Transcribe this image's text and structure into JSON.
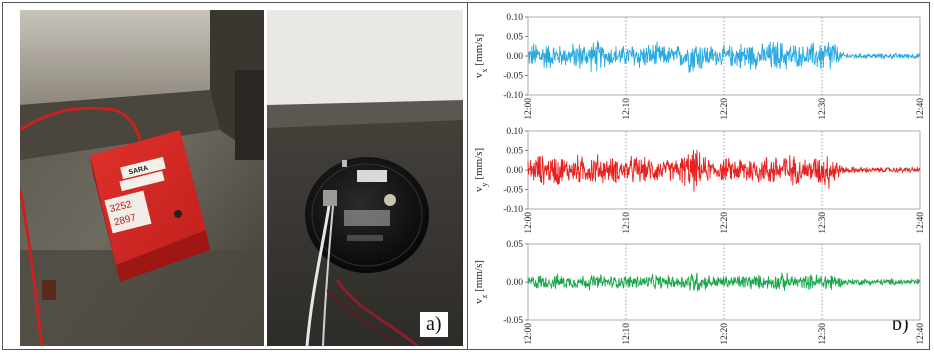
{
  "panel_a_label": "a)",
  "panel_b_label": "b)",
  "box_sticker": "SARA",
  "box_note_1": "3252",
  "box_note_2": "2897",
  "chart_data": [
    {
      "type": "line",
      "series_name": "vx",
      "ylabel_main": "v",
      "ylabel_sub": "x",
      "ylabel_unit": "[mm/s]",
      "color": "#29a9e0",
      "ylim": [
        -0.1,
        0.1
      ],
      "yticks": [
        "0.10",
        "0.05",
        "0.00",
        "-0.05",
        "-0.10"
      ],
      "yticks_values": [
        0.1,
        0.05,
        0.0,
        -0.05,
        -0.1
      ],
      "xticks": [
        "12:00",
        "12:10",
        "12:20",
        "12:30",
        "12:40"
      ],
      "xlim": [
        "12:00",
        "12:40"
      ],
      "grid": "vertical dotted",
      "x": [
        "12:00",
        "12:01",
        "12:02",
        "12:03",
        "12:04",
        "12:05",
        "12:06",
        "12:07",
        "12:08",
        "12:09",
        "12:10",
        "12:11",
        "12:12",
        "12:13",
        "12:14",
        "12:15",
        "12:16",
        "12:17",
        "12:18",
        "12:19",
        "12:20",
        "12:21",
        "12:22",
        "12:23",
        "12:24",
        "12:25",
        "12:26",
        "12:27",
        "12:28",
        "12:29",
        "12:30",
        "12:31",
        "12:32",
        "12:33",
        "12:34",
        "12:35",
        "12:36",
        "12:37",
        "12:38",
        "12:39",
        "12:40"
      ],
      "peak_amplitude": [
        0.03,
        0.05,
        0.04,
        0.035,
        0.03,
        0.045,
        0.04,
        0.05,
        0.03,
        0.035,
        0.03,
        0.045,
        0.035,
        0.04,
        0.03,
        0.03,
        0.04,
        0.06,
        0.04,
        0.03,
        0.03,
        0.035,
        0.045,
        0.04,
        0.035,
        0.05,
        0.045,
        0.04,
        0.03,
        0.04,
        0.05,
        0.06,
        0.01,
        0.01,
        0.008,
        0.008,
        0.008,
        0.008,
        0.008,
        0.008,
        0.008
      ]
    },
    {
      "type": "line",
      "series_name": "vy",
      "ylabel_main": "v",
      "ylabel_sub": "y",
      "ylabel_unit": "[mm/s]",
      "color": "#e8201f",
      "ylim": [
        -0.1,
        0.1
      ],
      "yticks": [
        "0.10",
        "0.05",
        "0.00",
        "-0.05",
        "-0.10"
      ],
      "yticks_values": [
        0.1,
        0.05,
        0.0,
        -0.05,
        -0.1
      ],
      "xticks": [
        "12:00",
        "12:10",
        "12:20",
        "12:30",
        "12:40"
      ],
      "xlim": [
        "12:00",
        "12:40"
      ],
      "grid": "vertical dotted",
      "x": [
        "12:00",
        "12:01",
        "12:02",
        "12:03",
        "12:04",
        "12:05",
        "12:06",
        "12:07",
        "12:08",
        "12:09",
        "12:10",
        "12:11",
        "12:12",
        "12:13",
        "12:14",
        "12:15",
        "12:16",
        "12:17",
        "12:18",
        "12:19",
        "12:20",
        "12:21",
        "12:22",
        "12:23",
        "12:24",
        "12:25",
        "12:26",
        "12:27",
        "12:28",
        "12:29",
        "12:30",
        "12:31",
        "12:32",
        "12:33",
        "12:34",
        "12:35",
        "12:36",
        "12:37",
        "12:38",
        "12:39",
        "12:40"
      ],
      "peak_amplitude": [
        0.03,
        0.05,
        0.04,
        0.05,
        0.035,
        0.045,
        0.04,
        0.05,
        0.035,
        0.04,
        0.035,
        0.045,
        0.035,
        0.04,
        0.03,
        0.035,
        0.05,
        0.065,
        0.04,
        0.03,
        0.035,
        0.035,
        0.045,
        0.045,
        0.04,
        0.05,
        0.055,
        0.045,
        0.035,
        0.04,
        0.05,
        0.06,
        0.012,
        0.01,
        0.01,
        0.008,
        0.008,
        0.008,
        0.008,
        0.008,
        0.008
      ]
    },
    {
      "type": "line",
      "series_name": "vz",
      "ylabel_main": "v",
      "ylabel_sub": "z",
      "ylabel_unit": "[mm/s]",
      "color": "#1aa64a",
      "ylim": [
        -0.05,
        0.05
      ],
      "yticks": [
        "0.05",
        "0.00",
        "-0.05"
      ],
      "yticks_values": [
        0.05,
        0.0,
        -0.05
      ],
      "xticks": [
        "12:00",
        "12:10",
        "12:20",
        "12:30",
        "12:40"
      ],
      "xlim": [
        "12:00",
        "12:40"
      ],
      "grid": "vertical dotted",
      "x": [
        "12:00",
        "12:01",
        "12:02",
        "12:03",
        "12:04",
        "12:05",
        "12:06",
        "12:07",
        "12:08",
        "12:09",
        "12:10",
        "12:11",
        "12:12",
        "12:13",
        "12:14",
        "12:15",
        "12:16",
        "12:17",
        "12:18",
        "12:19",
        "12:20",
        "12:21",
        "12:22",
        "12:23",
        "12:24",
        "12:25",
        "12:26",
        "12:27",
        "12:28",
        "12:29",
        "12:30",
        "12:31",
        "12:32",
        "12:33",
        "12:34",
        "12:35",
        "12:36",
        "12:37",
        "12:38",
        "12:39",
        "12:40"
      ],
      "peak_amplitude": [
        0.01,
        0.012,
        0.01,
        0.012,
        0.01,
        0.01,
        0.012,
        0.012,
        0.01,
        0.01,
        0.01,
        0.012,
        0.01,
        0.012,
        0.01,
        0.01,
        0.012,
        0.02,
        0.012,
        0.01,
        0.01,
        0.01,
        0.012,
        0.012,
        0.01,
        0.012,
        0.014,
        0.012,
        0.01,
        0.012,
        0.014,
        0.016,
        0.006,
        0.005,
        0.005,
        0.005,
        0.005,
        0.005,
        0.005,
        0.005,
        0.005
      ]
    }
  ]
}
